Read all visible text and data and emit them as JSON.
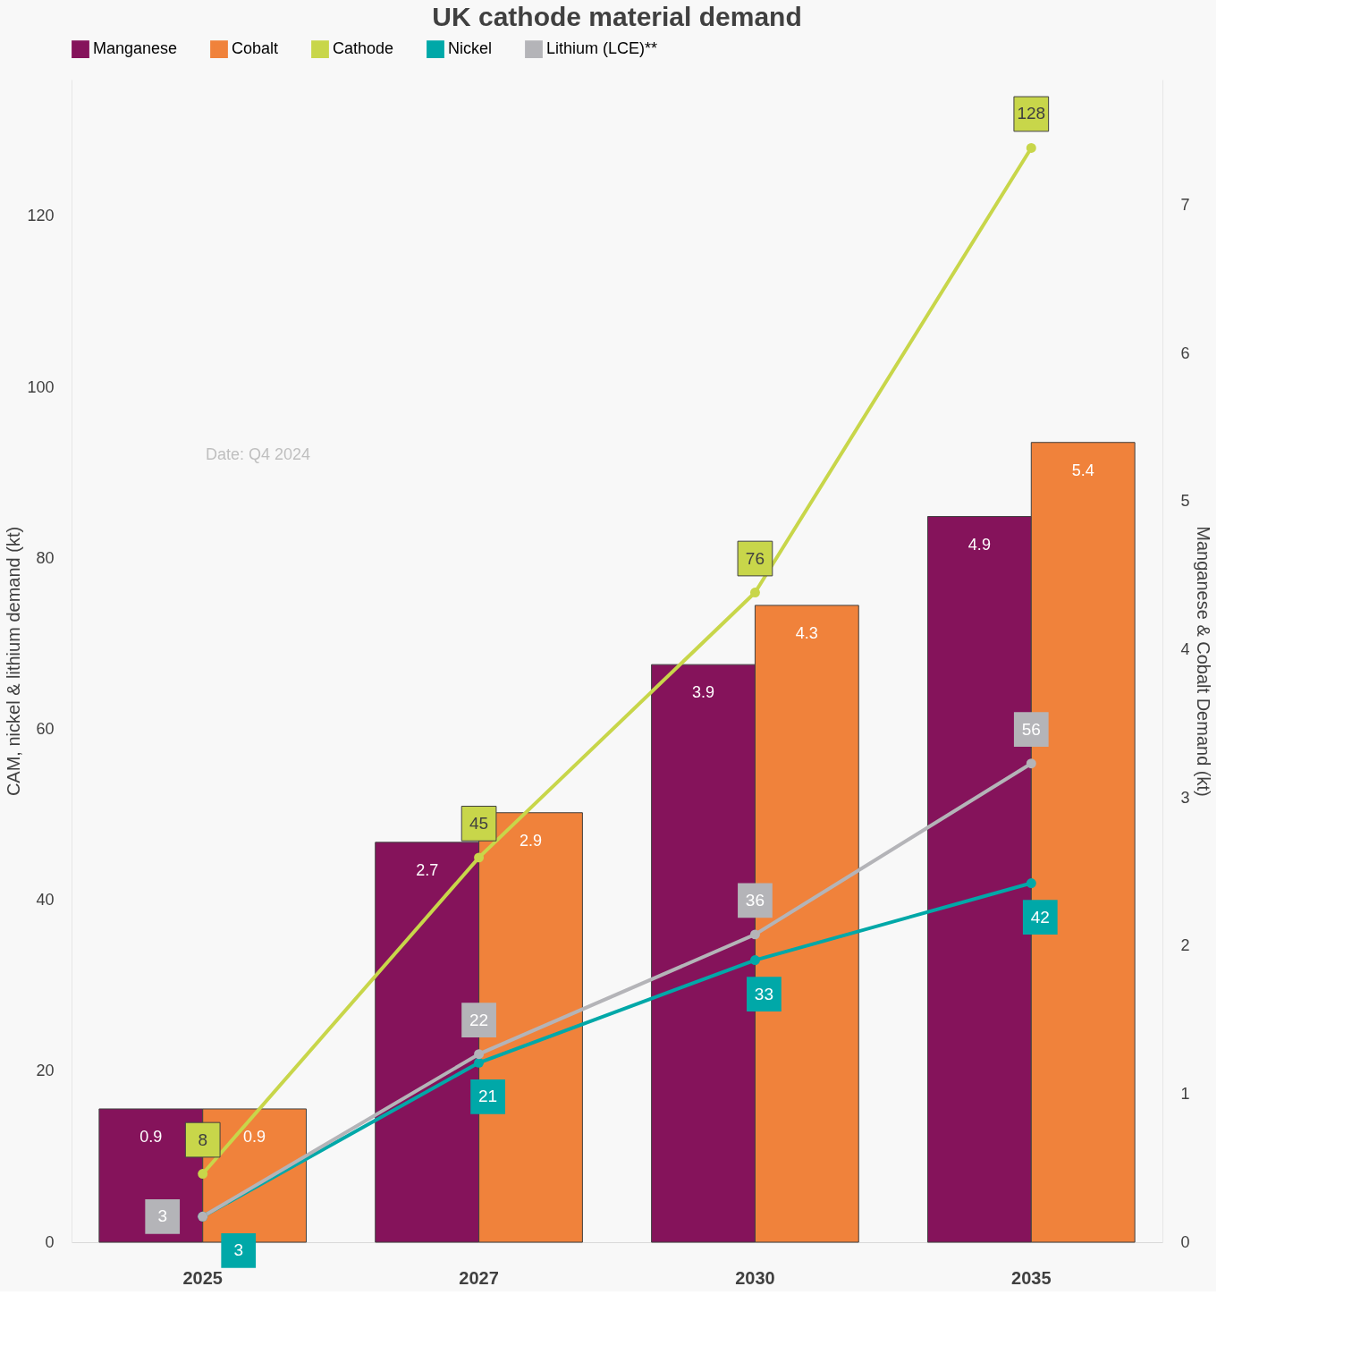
{
  "chart_data": {
    "type": "bar",
    "title": "UK cathode material demand",
    "categories": [
      "2025",
      "2027",
      "2030",
      "2035"
    ],
    "series": [
      {
        "name": "Manganese",
        "axis": "y2",
        "color": "#85135b",
        "values": [
          0.9,
          2.7,
          3.9,
          4.9
        ]
      },
      {
        "name": "Cobalt",
        "axis": "y2",
        "color": "#f0823b",
        "values": [
          0.9,
          2.9,
          4.3,
          5.4
        ]
      },
      {
        "name": "Cathode",
        "type": "line",
        "color": "#c8d64a",
        "values": [
          8,
          45,
          76,
          128
        ]
      },
      {
        "name": "Nickel",
        "type": "line",
        "color": "#00a8a8",
        "values": [
          3,
          21,
          33,
          42
        ]
      },
      {
        "name": "Lithium (LCE)**",
        "type": "line",
        "color": "#b4b4b8",
        "values": [
          3,
          22,
          36,
          56
        ]
      }
    ],
    "ylabel": "CAM, nickel & lithium demand (kt)",
    "y2label": "Manganese & Cobalt Demand (kt)",
    "ylim": [
      0,
      136
    ],
    "yticks": [
      0,
      20,
      40,
      60,
      80,
      100,
      120
    ],
    "y2lim": [
      0,
      7.85
    ],
    "y2ticks": [
      0,
      1,
      2,
      3,
      4,
      5,
      6,
      7
    ],
    "annotations": [
      "Date: Q4 2024"
    ],
    "data_labels": true,
    "grid": false,
    "legend": "top",
    "marker": "circle",
    "line_style": "solid"
  }
}
